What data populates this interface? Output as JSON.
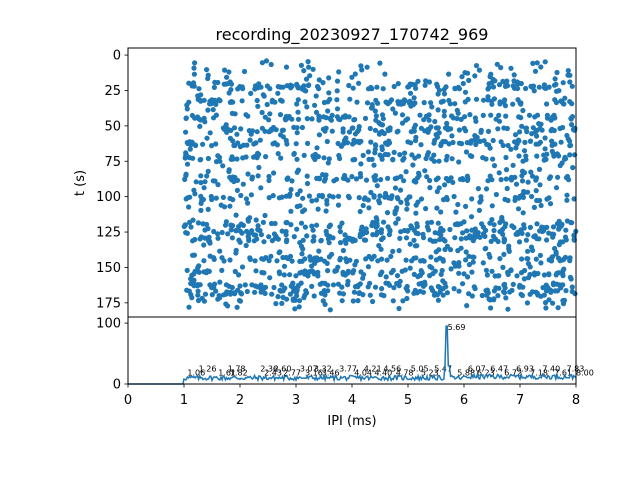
{
  "chart_data": [
    {
      "type": "scatter",
      "title": "recording_20230927_170742_969",
      "xlabel": "",
      "ylabel": "t (s)",
      "xlim": [
        0,
        8
      ],
      "ylim": [
        185,
        -5
      ],
      "y_inverted": true,
      "yticks": [
        0,
        25,
        50,
        75,
        100,
        125,
        150,
        175
      ],
      "color": "#1f77b4",
      "grid": false,
      "series": [
        {
          "x_range": [
            1.0,
            8.0
          ],
          "y_range": [
            4,
            180
          ],
          "approx_point_count": 1800,
          "dense_rows_t": [
            22,
            33,
            44,
            53,
            62,
            72,
            87,
            101,
            120,
            125,
            130,
            144,
            154,
            163,
            168
          ],
          "description_points": []
        }
      ]
    },
    {
      "type": "line",
      "xlabel": "IPI (ms)",
      "ylabel": "",
      "xlim": [
        0,
        8
      ],
      "ylim": [
        0,
        110
      ],
      "xticks": [
        0,
        1,
        2,
        3,
        4,
        5,
        6,
        7,
        8
      ],
      "yticks": [
        0,
        100
      ],
      "color": "#1f77b4",
      "grid": false,
      "peak": {
        "x": 5.69,
        "y": 95,
        "label": "5.69"
      },
      "baseline_level": 10,
      "annotations": [
        "1.06",
        "1.26",
        "1.61",
        "1.78",
        "1.82",
        "2.36",
        "2.43",
        "2.60",
        "2.77",
        "3.07",
        "3.16",
        "3.32",
        "3.46",
        "3.77",
        "4.04",
        "4.21",
        "4.40",
        "4.56",
        "4.78",
        "5.05",
        "5.23",
        "5.47",
        "5.88",
        "6.07",
        "6.23",
        "6.47",
        "6.72",
        "6.93",
        "7.18",
        "7.40",
        "7.61",
        "7.83",
        "8.00"
      ]
    }
  ]
}
